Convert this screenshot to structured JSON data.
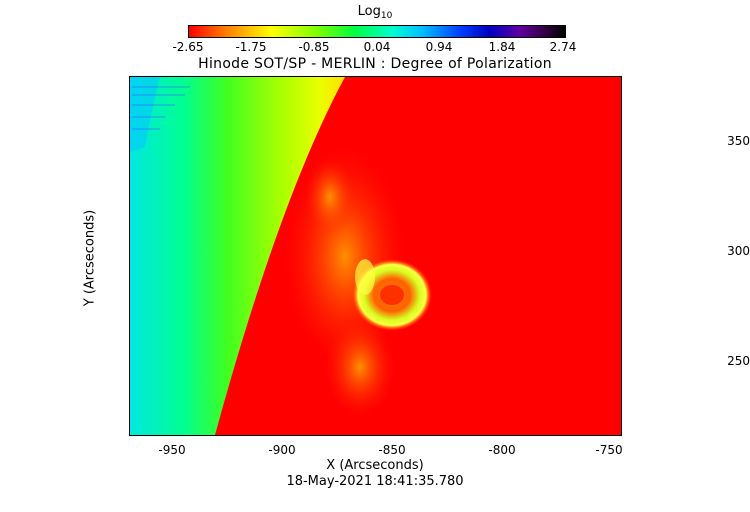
{
  "colorbar": {
    "title": "Log",
    "title_subscript": "10",
    "ticks": [
      "-2.65",
      "-1.75",
      "-0.85",
      "0.04",
      "0.94",
      "1.84",
      "2.74"
    ]
  },
  "title": "Hinode SOT/SP - MERLIN : Degree of Polarization",
  "axes": {
    "xlabel": "X (Arcseconds)",
    "ylabel": "Y (Arcseconds)",
    "xticks": [
      "-950",
      "-900",
      "-850",
      "-800",
      "-750"
    ],
    "yticks": [
      "350",
      "300",
      "250"
    ],
    "xlim": [
      -970,
      -748
    ],
    "ylim": [
      215,
      378
    ]
  },
  "timestamp": "18-May-2021 18:41:35.780"
}
